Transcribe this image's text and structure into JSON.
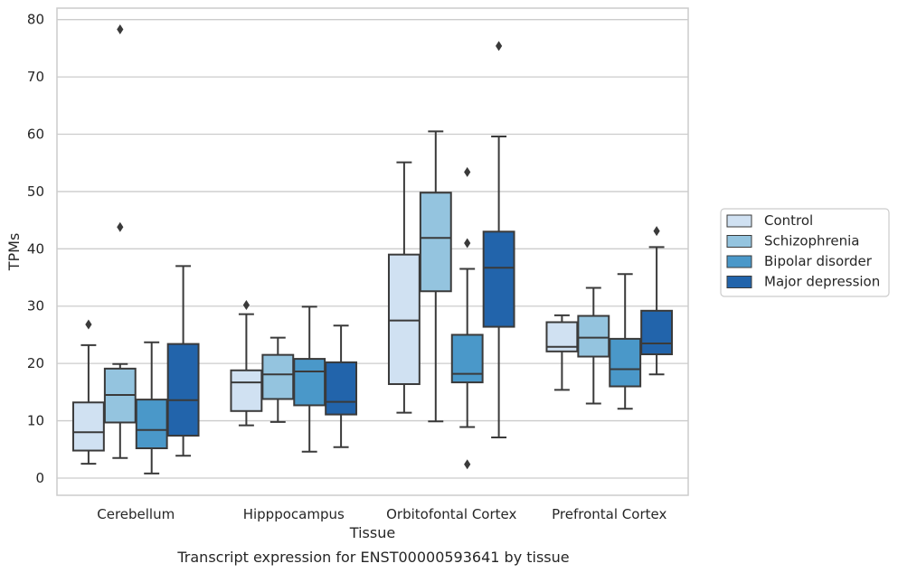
{
  "chart_data": {
    "type": "box",
    "xlabel": "Tissue",
    "ylabel": "TPMs",
    "caption": "Transcript expression for ENST00000593641 by tissue",
    "ylim": [
      -3,
      82
    ],
    "yticks": [
      0,
      10,
      20,
      30,
      40,
      50,
      60,
      70,
      80
    ],
    "grid": true,
    "legend_position": "right",
    "categories": [
      "Cerebellum",
      "Hipppocampus",
      "Orbitofontal Cortex",
      "Prefrontal Cortex"
    ],
    "series": [
      {
        "name": "Control",
        "color": "#d0e1f2",
        "boxes": [
          {
            "whisker_low": 2.5,
            "q1": 4.8,
            "median": 8.0,
            "q3": 13.2,
            "whisker_high": 23.2,
            "outliers": [
              26.8
            ]
          },
          {
            "whisker_low": 9.2,
            "q1": 11.7,
            "median": 16.7,
            "q3": 18.8,
            "whisker_high": 28.6,
            "outliers": [
              30.2
            ]
          },
          {
            "whisker_low": 11.4,
            "q1": 16.4,
            "median": 27.5,
            "q3": 39.0,
            "whisker_high": 55.1,
            "outliers": []
          },
          {
            "whisker_low": 15.4,
            "q1": 22.1,
            "median": 22.9,
            "q3": 27.2,
            "whisker_high": 28.4,
            "outliers": []
          }
        ]
      },
      {
        "name": "Schizophrenia",
        "color": "#94c4df",
        "boxes": [
          {
            "whisker_low": 3.5,
            "q1": 9.7,
            "median": 14.5,
            "q3": 19.1,
            "whisker_high": 19.9,
            "outliers": [
              43.8,
              78.3
            ]
          },
          {
            "whisker_low": 9.8,
            "q1": 13.8,
            "median": 18.1,
            "q3": 21.5,
            "whisker_high": 24.5,
            "outliers": []
          },
          {
            "whisker_low": 9.9,
            "q1": 32.6,
            "median": 41.9,
            "q3": 49.8,
            "whisker_high": 60.5,
            "outliers": []
          },
          {
            "whisker_low": 13.0,
            "q1": 21.2,
            "median": 24.5,
            "q3": 28.3,
            "whisker_high": 33.2,
            "outliers": []
          }
        ]
      },
      {
        "name": "Bipolar disorder",
        "color": "#4a98c9",
        "boxes": [
          {
            "whisker_low": 0.8,
            "q1": 5.2,
            "median": 8.4,
            "q3": 13.7,
            "whisker_high": 23.7,
            "outliers": []
          },
          {
            "whisker_low": 4.6,
            "q1": 12.7,
            "median": 18.6,
            "q3": 20.8,
            "whisker_high": 29.9,
            "outliers": []
          },
          {
            "whisker_low": 8.9,
            "q1": 16.7,
            "median": 18.2,
            "q3": 25.0,
            "whisker_high": 36.5,
            "outliers": [
              2.4,
              41.0,
              53.4
            ]
          },
          {
            "whisker_low": 12.1,
            "q1": 16.0,
            "median": 19.0,
            "q3": 24.3,
            "whisker_high": 35.6,
            "outliers": []
          }
        ]
      },
      {
        "name": "Major depression",
        "color": "#2264ab",
        "boxes": [
          {
            "whisker_low": 3.9,
            "q1": 7.4,
            "median": 13.6,
            "q3": 23.4,
            "whisker_high": 37.0,
            "outliers": []
          },
          {
            "whisker_low": 5.4,
            "q1": 11.1,
            "median": 13.3,
            "q3": 20.2,
            "whisker_high": 26.6,
            "outliers": []
          },
          {
            "whisker_low": 7.1,
            "q1": 26.4,
            "median": 36.7,
            "q3": 43.0,
            "whisker_high": 59.6,
            "outliers": [
              75.4
            ]
          },
          {
            "whisker_low": 18.1,
            "q1": 21.6,
            "median": 23.5,
            "q3": 29.2,
            "whisker_high": 40.3,
            "outliers": [
              43.1
            ]
          }
        ]
      }
    ]
  }
}
